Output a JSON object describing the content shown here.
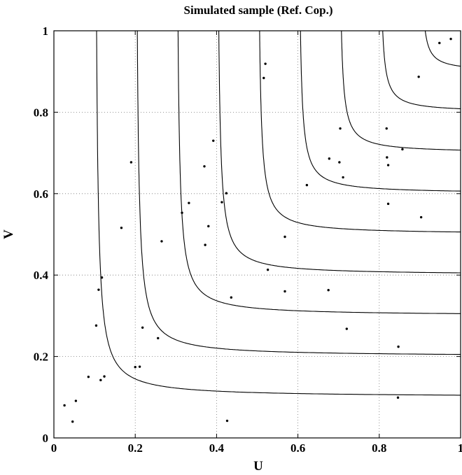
{
  "chart_data": {
    "type": "scatter",
    "title": "Simulated sample (Ref. Cop.)",
    "xlabel": "U",
    "ylabel": "V",
    "xlim": [
      0,
      1
    ],
    "ylim": [
      0,
      1
    ],
    "xticks": [
      "0",
      "0.2",
      "0.4",
      "0.6",
      "0.8",
      "1"
    ],
    "yticks": [
      "0",
      "0.2",
      "0.4",
      "0.6",
      "0.8",
      "1"
    ],
    "grid": true,
    "grid_style": "dotted",
    "contour_levels": [
      0.1,
      0.2,
      0.3,
      0.4,
      0.5,
      0.6,
      0.7,
      0.8,
      0.9
    ],
    "points": [
      {
        "x": 0.026,
        "y": 0.08
      },
      {
        "x": 0.046,
        "y": 0.04
      },
      {
        "x": 0.054,
        "y": 0.091
      },
      {
        "x": 0.085,
        "y": 0.15
      },
      {
        "x": 0.104,
        "y": 0.276
      },
      {
        "x": 0.11,
        "y": 0.364
      },
      {
        "x": 0.115,
        "y": 0.142
      },
      {
        "x": 0.118,
        "y": 0.394
      },
      {
        "x": 0.124,
        "y": 0.151
      },
      {
        "x": 0.166,
        "y": 0.516
      },
      {
        "x": 0.19,
        "y": 0.677
      },
      {
        "x": 0.2,
        "y": 0.174
      },
      {
        "x": 0.211,
        "y": 0.175
      },
      {
        "x": 0.218,
        "y": 0.271
      },
      {
        "x": 0.256,
        "y": 0.245
      },
      {
        "x": 0.265,
        "y": 0.483
      },
      {
        "x": 0.315,
        "y": 0.553
      },
      {
        "x": 0.332,
        "y": 0.577
      },
      {
        "x": 0.37,
        "y": 0.667
      },
      {
        "x": 0.372,
        "y": 0.474
      },
      {
        "x": 0.38,
        "y": 0.52
      },
      {
        "x": 0.392,
        "y": 0.73
      },
      {
        "x": 0.413,
        "y": 0.579
      },
      {
        "x": 0.424,
        "y": 0.601
      },
      {
        "x": 0.426,
        "y": 0.042
      },
      {
        "x": 0.436,
        "y": 0.345
      },
      {
        "x": 0.516,
        "y": 0.884
      },
      {
        "x": 0.52,
        "y": 0.919
      },
      {
        "x": 0.526,
        "y": 0.413
      },
      {
        "x": 0.568,
        "y": 0.36
      },
      {
        "x": 0.568,
        "y": 0.494
      },
      {
        "x": 0.622,
        "y": 0.621
      },
      {
        "x": 0.675,
        "y": 0.363
      },
      {
        "x": 0.677,
        "y": 0.686
      },
      {
        "x": 0.702,
        "y": 0.677
      },
      {
        "x": 0.704,
        "y": 0.76
      },
      {
        "x": 0.711,
        "y": 0.64
      },
      {
        "x": 0.72,
        "y": 0.268
      },
      {
        "x": 0.818,
        "y": 0.76
      },
      {
        "x": 0.819,
        "y": 0.689
      },
      {
        "x": 0.822,
        "y": 0.67
      },
      {
        "x": 0.822,
        "y": 0.575
      },
      {
        "x": 0.846,
        "y": 0.099
      },
      {
        "x": 0.847,
        "y": 0.224
      },
      {
        "x": 0.857,
        "y": 0.709
      },
      {
        "x": 0.897,
        "y": 0.887
      },
      {
        "x": 0.903,
        "y": 0.542
      },
      {
        "x": 0.948,
        "y": 0.97
      },
      {
        "x": 0.976,
        "y": 0.98
      }
    ]
  }
}
